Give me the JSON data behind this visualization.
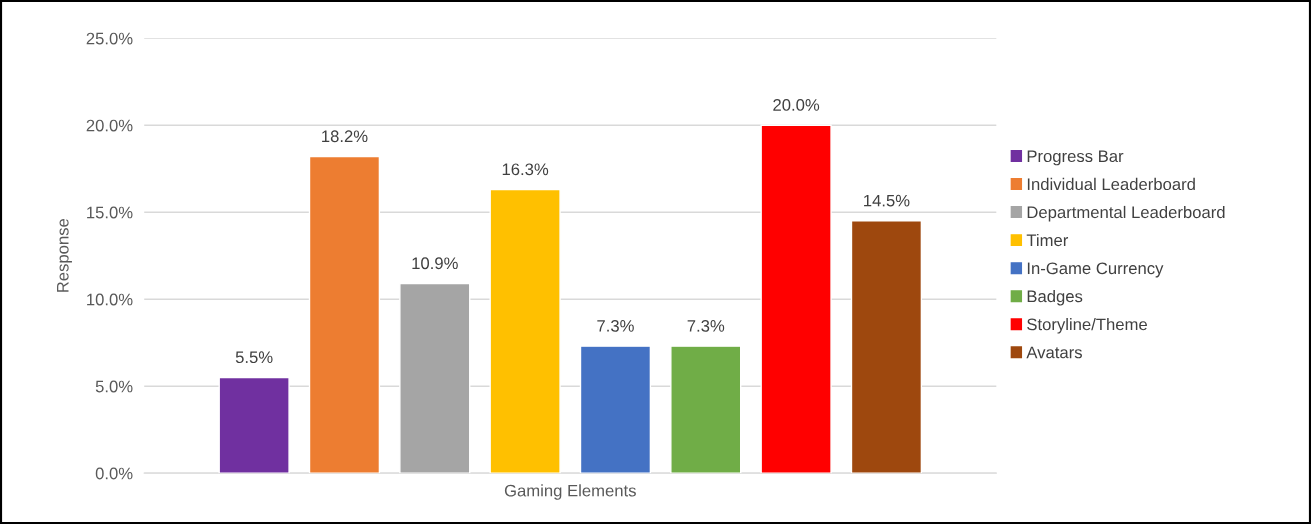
{
  "chart_data": {
    "type": "bar",
    "ylabel": "Response",
    "categories": [
      "Gaming Elements"
    ],
    "series": [
      {
        "name": "Progress Bar",
        "color": "#7030a0",
        "values": [
          5.5
        ],
        "value_labels": [
          "5.5%"
        ]
      },
      {
        "name": "Individual Leaderboard",
        "color": "#ed7d31",
        "values": [
          18.2
        ],
        "value_labels": [
          "18.2%"
        ]
      },
      {
        "name": "Departmental Leaderboard",
        "color": "#a5a5a5",
        "values": [
          10.9
        ],
        "value_labels": [
          "10.9%"
        ]
      },
      {
        "name": "Timer",
        "color": "#ffc000",
        "values": [
          16.3
        ],
        "value_labels": [
          "16.3%"
        ]
      },
      {
        "name": "In-Game Currency",
        "color": "#4472c4",
        "values": [
          7.3
        ],
        "value_labels": [
          "7.3%"
        ]
      },
      {
        "name": "Badges",
        "color": "#70ad47",
        "values": [
          7.3
        ],
        "value_labels": [
          "7.3%"
        ]
      },
      {
        "name": "Storyline/Theme",
        "color": "#ff0000",
        "values": [
          20.0
        ],
        "value_labels": [
          "20.0%"
        ]
      },
      {
        "name": "Avatars",
        "color": "#9e480e",
        "values": [
          14.5
        ],
        "value_labels": [
          "14.5%"
        ]
      }
    ],
    "ylim": [
      0,
      25
    ],
    "yticks": [
      {
        "value": 0,
        "label": "0.0%"
      },
      {
        "value": 5,
        "label": "5.0%"
      },
      {
        "value": 10,
        "label": "10.0%"
      },
      {
        "value": 15,
        "label": "15.0%"
      },
      {
        "value": 20,
        "label": "20.0%"
      },
      {
        "value": 25,
        "label": "25.0%"
      }
    ],
    "grid": "y",
    "legend": "right"
  }
}
